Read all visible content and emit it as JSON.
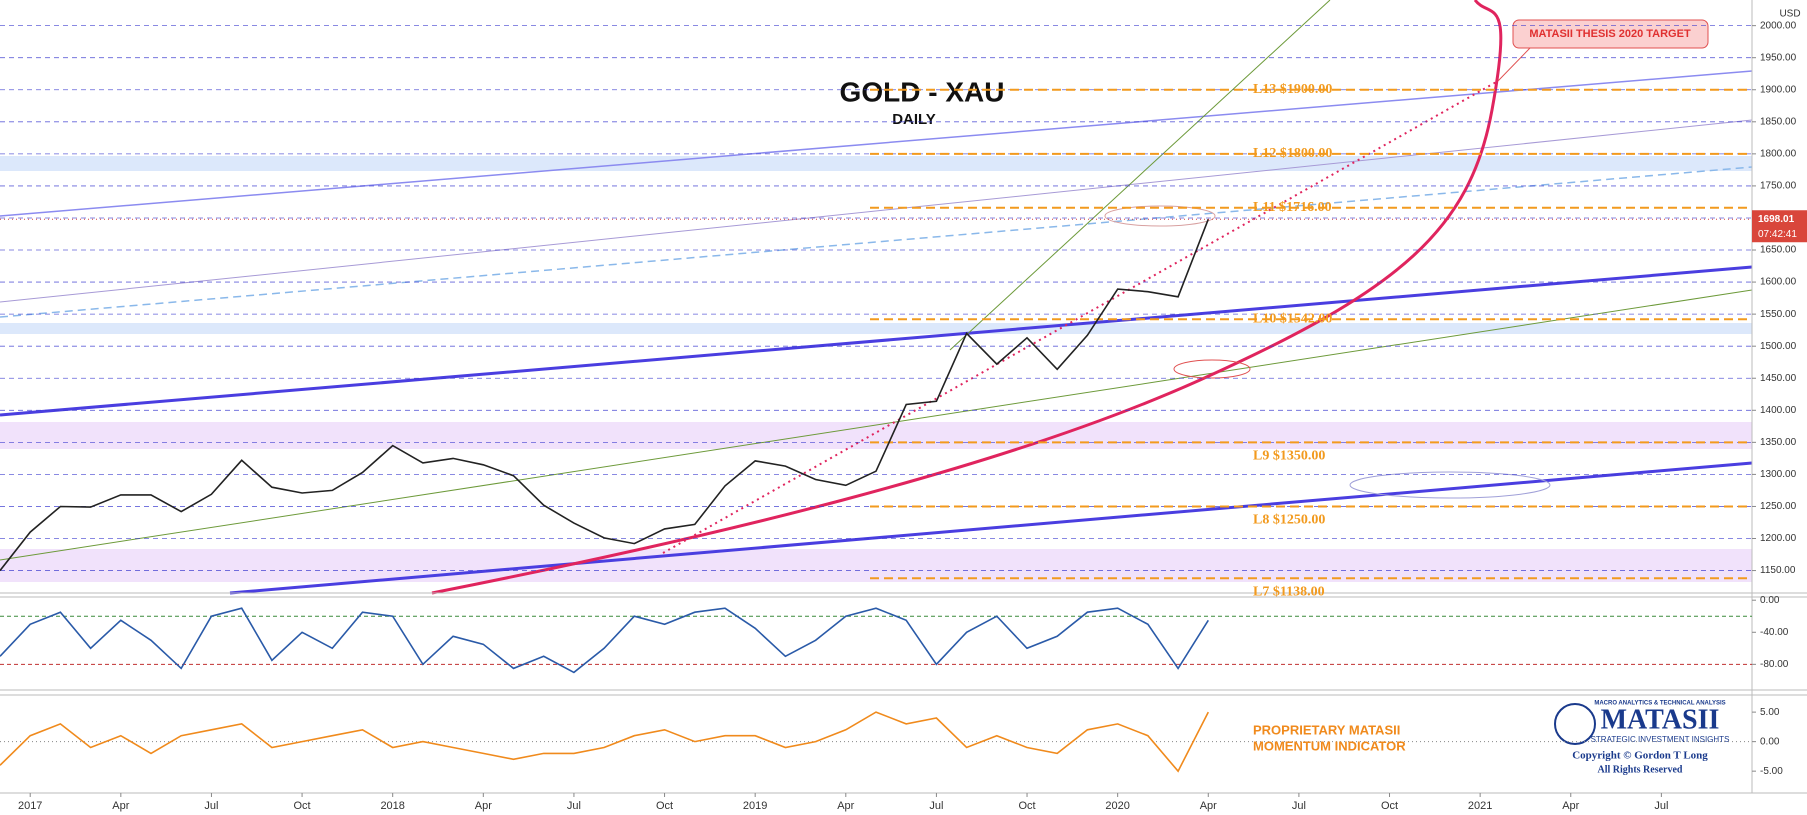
{
  "chart_data": [
    {
      "type": "line",
      "title": "GOLD - XAU",
      "subtitle": "DAILY",
      "y_axis_label": "USD",
      "x": [
        "2016-12",
        "2017-01",
        "2017-02",
        "2017-03",
        "2017-04",
        "2017-05",
        "2017-06",
        "2017-07",
        "2017-08",
        "2017-09",
        "2017-10",
        "2017-11",
        "2017-12",
        "2018-01",
        "2018-02",
        "2018-03",
        "2018-04",
        "2018-05",
        "2018-06",
        "2018-07",
        "2018-08",
        "2018-09",
        "2018-10",
        "2018-11",
        "2018-12",
        "2019-01",
        "2019-02",
        "2019-03",
        "2019-04",
        "2019-05",
        "2019-06",
        "2019-07",
        "2019-08",
        "2019-09",
        "2019-10",
        "2019-11",
        "2019-12",
        "2020-01",
        "2020-02",
        "2020-03",
        "2020-04"
      ],
      "values": [
        1150,
        1210,
        1250,
        1249,
        1268,
        1268,
        1242,
        1269,
        1322,
        1280,
        1271,
        1275,
        1303,
        1345,
        1318,
        1325,
        1315,
        1298,
        1252,
        1224,
        1201,
        1192,
        1215,
        1222,
        1282,
        1321,
        1313,
        1292,
        1283,
        1305,
        1409,
        1414,
        1520,
        1472,
        1513,
        1464,
        1517,
        1589,
        1585,
        1577,
        1698
      ],
      "color": "#222222",
      "xlim": [
        "2016-12",
        "2021-10"
      ],
      "ylim": [
        1115,
        2040
      ],
      "yticks": [
        {
          "value": 1150,
          "label": "1150.00"
        },
        {
          "value": 1200,
          "label": "1200.00"
        },
        {
          "value": 1250,
          "label": "1250.00"
        },
        {
          "value": 1300,
          "label": "1300.00"
        },
        {
          "value": 1350,
          "label": "1350.00"
        },
        {
          "value": 1400,
          "label": "1400.00"
        },
        {
          "value": 1450,
          "label": "1450.00"
        },
        {
          "value": 1500,
          "label": "1500.00"
        },
        {
          "value": 1550,
          "label": "1550.00"
        },
        {
          "value": 1600,
          "label": "1600.00"
        },
        {
          "value": 1650,
          "label": "1650.00"
        },
        {
          "value": 1700,
          "label": "1700.00"
        },
        {
          "value": 1750,
          "label": "1750.00"
        },
        {
          "value": 1800,
          "label": "1800.00"
        },
        {
          "value": 1850,
          "label": "1850.00"
        },
        {
          "value": 1900,
          "label": "1900.00"
        },
        {
          "value": 1950,
          "label": "1950.00"
        },
        {
          "value": 2000,
          "label": "2000.00"
        }
      ],
      "grid": true,
      "last_value": 1698.01,
      "countdown": "07:42:41",
      "levels": [
        {
          "label": "L13 $1900.00",
          "value": 1900
        },
        {
          "label": "L12 $1800.00",
          "value": 1800
        },
        {
          "label": "L11 $1716.00",
          "value": 1716
        },
        {
          "label": "L10 $1542.00",
          "value": 1542
        },
        {
          "label": "L9 $1350.00",
          "value": 1350
        },
        {
          "label": "L8 $1250.00",
          "value": 1250
        },
        {
          "label": "L7 $1138.00",
          "value": 1138
        }
      ],
      "level_color": "#f29a1e",
      "annotation": "MATASII THESIS 2020 TARGET"
    },
    {
      "type": "line",
      "x": [
        "2016-12",
        "2017-01",
        "2017-02",
        "2017-03",
        "2017-04",
        "2017-05",
        "2017-06",
        "2017-07",
        "2017-08",
        "2017-09",
        "2017-10",
        "2017-11",
        "2017-12",
        "2018-01",
        "2018-02",
        "2018-03",
        "2018-04",
        "2018-05",
        "2018-06",
        "2018-07",
        "2018-08",
        "2018-09",
        "2018-10",
        "2018-11",
        "2018-12",
        "2019-01",
        "2019-02",
        "2019-03",
        "2019-04",
        "2019-05",
        "2019-06",
        "2019-07",
        "2019-08",
        "2019-09",
        "2019-10",
        "2019-11",
        "2019-12",
        "2020-01",
        "2020-02",
        "2020-03",
        "2020-04"
      ],
      "values": [
        -70,
        -30,
        -15,
        -60,
        -25,
        -50,
        -85,
        -20,
        -10,
        -75,
        -40,
        -60,
        -15,
        -20,
        -80,
        -45,
        -55,
        -85,
        -70,
        -90,
        -60,
        -20,
        -30,
        -15,
        -10,
        -35,
        -70,
        -50,
        -20,
        -10,
        -25,
        -80,
        -40,
        -20,
        -60,
        -45,
        -15,
        -10,
        -30,
        -85,
        -25
      ],
      "color": "#2a5aa8",
      "ylim": [
        -112,
        4
      ],
      "yticks": [
        {
          "value": 0,
          "label": "0.00"
        },
        {
          "value": -40,
          "label": "-40.00"
        },
        {
          "value": -80,
          "label": "-80.00"
        }
      ],
      "reference_lines": [
        {
          "value": -20,
          "color": "#3a8a3a"
        },
        {
          "value": -80,
          "color": "#c03030"
        }
      ]
    },
    {
      "type": "line",
      "x": [
        "2016-12",
        "2017-01",
        "2017-02",
        "2017-03",
        "2017-04",
        "2017-05",
        "2017-06",
        "2017-07",
        "2017-08",
        "2017-09",
        "2017-10",
        "2017-11",
        "2017-12",
        "2018-01",
        "2018-02",
        "2018-03",
        "2018-04",
        "2018-05",
        "2018-06",
        "2018-07",
        "2018-08",
        "2018-09",
        "2018-10",
        "2018-11",
        "2018-12",
        "2019-01",
        "2019-02",
        "2019-03",
        "2019-04",
        "2019-05",
        "2019-06",
        "2019-07",
        "2019-08",
        "2019-09",
        "2019-10",
        "2019-11",
        "2019-12",
        "2020-01",
        "2020-02",
        "2020-03",
        "2020-04"
      ],
      "values": [
        -4,
        1,
        3,
        -1,
        1,
        -2,
        1,
        2,
        3,
        -1,
        0,
        1,
        2,
        -1,
        0,
        -1,
        -2,
        -3,
        -2,
        -2,
        -1,
        1,
        2,
        0,
        1,
        1,
        -1,
        0,
        2,
        5,
        3,
        4,
        -1,
        1,
        -1,
        -2,
        2,
        3,
        1,
        -5,
        5
      ],
      "color": "#f08a1c",
      "ylim": [
        -8.7,
        7.9
      ],
      "yticks": [
        {
          "value": 5,
          "label": "5.00"
        },
        {
          "value": 0,
          "label": "0.00"
        },
        {
          "value": -5,
          "label": "-5.00"
        }
      ],
      "annotation": [
        "PROPRIETARY MATASII",
        "MOMENTUM INDICATOR"
      ],
      "xticks": [
        {
          "value": "2017-01",
          "label": "2017"
        },
        {
          "value": "2017-04",
          "label": "Apr"
        },
        {
          "value": "2017-07",
          "label": "Jul"
        },
        {
          "value": "2017-10",
          "label": "Oct"
        },
        {
          "value": "2018-01",
          "label": "2018"
        },
        {
          "value": "2018-04",
          "label": "Apr"
        },
        {
          "value": "2018-07",
          "label": "Jul"
        },
        {
          "value": "2018-10",
          "label": "Oct"
        },
        {
          "value": "2019-01",
          "label": "2019"
        },
        {
          "value": "2019-04",
          "label": "Apr"
        },
        {
          "value": "2019-07",
          "label": "Jul"
        },
        {
          "value": "2019-10",
          "label": "Oct"
        },
        {
          "value": "2020-01",
          "label": "2020"
        },
        {
          "value": "2020-04",
          "label": "Apr"
        },
        {
          "value": "2020-07",
          "label": "Jul"
        },
        {
          "value": "2020-10",
          "label": "Oct"
        },
        {
          "value": "2021-01",
          "label": "2021"
        },
        {
          "value": "2021-04",
          "label": "Apr"
        },
        {
          "value": "2021-07",
          "label": "Jul"
        }
      ]
    }
  ],
  "logo": {
    "tagline": "MACRO ANALYTICS & TECHNICAL ANALYSIS",
    "name": "MATASII",
    "subtitle": "STRATEGIC INVESTMENT INSIGHTS",
    "copyright": "Copyright © Gordon T Long",
    "rights": "All Rights Reserved"
  }
}
